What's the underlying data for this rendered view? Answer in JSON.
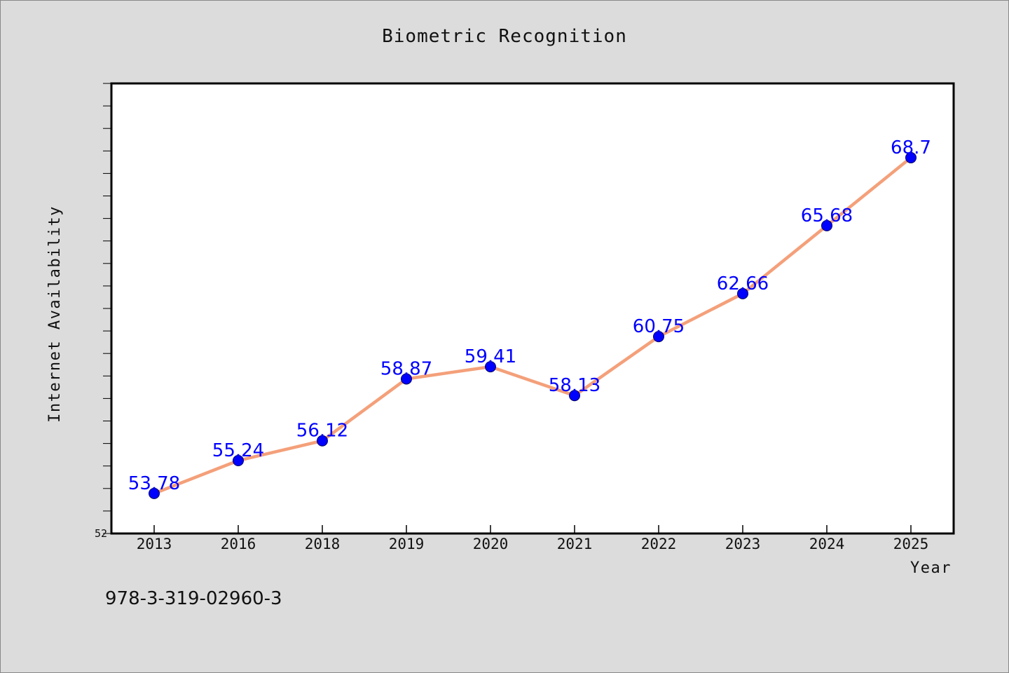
{
  "chart_data": {
    "type": "line",
    "title": "Biometric Recognition",
    "xlabel": "Year",
    "ylabel": "Internet Availability",
    "categories": [
      "2013",
      "2016",
      "2018",
      "2019",
      "2020",
      "2021",
      "2022",
      "2023",
      "2024",
      "2025"
    ],
    "series": [
      {
        "values": [
          53.78,
          55.24,
          56.12,
          58.87,
          59.41,
          58.13,
          60.75,
          62.66,
          65.68,
          68.7
        ]
      }
    ],
    "data_labels": [
      "53.78",
      "55.24",
      "56.12",
      "58.87",
      "59.41",
      "58.13",
      "60.75",
      "62.66",
      "65.68",
      "68.7"
    ],
    "ylim": [
      52,
      72
    ],
    "y_tick_labels": [
      "52"
    ],
    "grid": false,
    "line_color": "#f4a07a",
    "marker_color": "#0000ff",
    "label_color": "#0000ff"
  },
  "annotation": "978-3-319-02960-3"
}
